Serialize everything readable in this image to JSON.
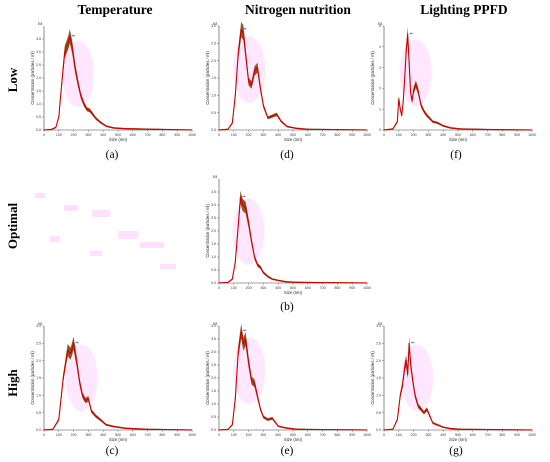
{
  "headers": {
    "columns": [
      "Temperature",
      "Nitrogen nutrition",
      "Lighting PPFD"
    ],
    "rows": [
      "Low",
      "Optimal",
      "High"
    ]
  },
  "axis_text": {
    "xlabel": "Size (nm)",
    "ylabel": "Concentration (particles / ml)",
    "exponent": "E8",
    "xticks": [
      "0",
      "100",
      "200",
      "300",
      "400",
      "500",
      "600",
      "700",
      "800",
      "900",
      "1000"
    ]
  },
  "colors": {
    "curve": "#cc0000",
    "band": "#7a3b00",
    "magenta": "#ff3cff",
    "marker": "#6d5bd0"
  },
  "chart_data": [
    {
      "id": "a",
      "caption": "(a)",
      "type": "area",
      "condition": "Temperature – Low",
      "xlabel": "Size (nm)",
      "ylabel": "Concentration (particles / ml)",
      "xlim": [
        0,
        1000
      ],
      "ylim": [
        0,
        4.0
      ],
      "yticks": [
        "0.0",
        "0.5",
        "1.0",
        "1.5",
        "2.0",
        "2.5",
        "3.0",
        "3.5"
      ],
      "x": [
        0,
        50,
        80,
        100,
        120,
        140,
        160,
        175,
        190,
        210,
        230,
        250,
        270,
        290,
        310,
        330,
        350,
        380,
        420,
        470,
        550,
        700,
        1000
      ],
      "y": [
        0,
        0.02,
        0.1,
        0.5,
        1.8,
        3.0,
        3.3,
        3.6,
        3.2,
        2.4,
        1.8,
        1.3,
        1.0,
        0.8,
        0.75,
        0.6,
        0.45,
        0.3,
        0.15,
        0.08,
        0.05,
        0.03,
        0
      ]
    },
    {
      "id": "b",
      "caption": "(b)",
      "type": "area",
      "condition": "Nitrogen nutrition – Optimal",
      "xlabel": "Size (nm)",
      "ylabel": "Concentration (particles / ml)",
      "xlim": [
        0,
        1000
      ],
      "ylim": [
        0,
        4.0
      ],
      "yticks": [
        "0.0",
        "0.5",
        "1.0",
        "1.5",
        "2.0",
        "2.5",
        "3.0",
        "3.5"
      ],
      "x": [
        0,
        60,
        90,
        110,
        130,
        145,
        160,
        180,
        200,
        220,
        240,
        260,
        280,
        300,
        330,
        360,
        400,
        450,
        500,
        600,
        1000
      ],
      "y": [
        0,
        0.02,
        0.15,
        0.8,
        2.2,
        3.3,
        3.0,
        2.9,
        2.3,
        1.6,
        1.0,
        0.7,
        0.6,
        0.4,
        0.25,
        0.15,
        0.1,
        0.05,
        0.03,
        0.02,
        0
      ]
    },
    {
      "id": "c",
      "caption": "(c)",
      "type": "area",
      "condition": "Temperature – High",
      "xlabel": "Size (nm)",
      "ylabel": "Concentration (particles / ml)",
      "xlim": [
        0,
        1000
      ],
      "ylim": [
        0,
        3.0
      ],
      "yticks": [
        "0.0",
        "0.5",
        "1.0",
        "1.5",
        "2.0",
        "2.5",
        "3.0"
      ],
      "x": [
        0,
        60,
        100,
        130,
        160,
        180,
        200,
        220,
        240,
        260,
        280,
        300,
        320,
        350,
        380,
        420,
        470,
        550,
        700,
        1000
      ],
      "y": [
        0,
        0.02,
        0.3,
        1.5,
        2.3,
        2.2,
        2.5,
        2.0,
        1.4,
        1.0,
        0.85,
        0.9,
        0.55,
        0.4,
        0.3,
        0.15,
        0.1,
        0.05,
        0.02,
        0
      ]
    },
    {
      "id": "d",
      "caption": "(d)",
      "type": "area",
      "condition": "Nitrogen nutrition – Low",
      "xlabel": "Size (nm)",
      "ylabel": "Concentration (particles / ml)",
      "xlim": [
        0,
        1000
      ],
      "ylim": [
        0,
        3.0
      ],
      "yticks": [
        "0.0",
        "0.5",
        "1.0",
        "1.5",
        "2.0",
        "2.5",
        "3.0"
      ],
      "x": [
        0,
        60,
        90,
        110,
        130,
        150,
        165,
        180,
        200,
        220,
        240,
        260,
        280,
        300,
        330,
        360,
        390,
        420,
        460,
        520,
        600,
        1000
      ],
      "y": [
        0,
        0.02,
        0.2,
        1.0,
        2.2,
        2.9,
        2.8,
        2.2,
        1.4,
        1.3,
        1.7,
        1.8,
        1.2,
        0.7,
        0.35,
        0.4,
        0.45,
        0.25,
        0.1,
        0.05,
        0.02,
        0
      ]
    },
    {
      "id": "e",
      "caption": "(e)",
      "type": "area",
      "condition": "Nitrogen nutrition – High",
      "xlabel": "Size (nm)",
      "ylabel": "Concentration (particles / ml)",
      "xlim": [
        0,
        1000
      ],
      "ylim": [
        0,
        4.0
      ],
      "yticks": [
        "0.0",
        "0.5",
        "1.0",
        "1.5",
        "2.0",
        "2.5",
        "3.0",
        "3.5",
        "4.0"
      ],
      "x": [
        0,
        60,
        90,
        110,
        130,
        150,
        165,
        180,
        200,
        220,
        240,
        260,
        280,
        300,
        330,
        360,
        400,
        450,
        520,
        600,
        1000
      ],
      "y": [
        0,
        0.02,
        0.2,
        1.2,
        3.0,
        3.8,
        3.3,
        3.5,
        2.6,
        1.9,
        1.8,
        1.3,
        0.8,
        0.5,
        0.4,
        0.45,
        0.15,
        0.08,
        0.03,
        0.02,
        0
      ]
    },
    {
      "id": "f",
      "caption": "(f)",
      "type": "area",
      "condition": "Lighting PPFD – Low",
      "xlabel": "Size (nm)",
      "ylabel": "Concentration (particles / ml)",
      "xlim": [
        0,
        1000
      ],
      "ylim": [
        0,
        5.0
      ],
      "yticks": [
        "0",
        "1",
        "2",
        "3",
        "4",
        "5"
      ],
      "x": [
        0,
        60,
        90,
        100,
        110,
        120,
        130,
        140,
        150,
        160,
        170,
        180,
        190,
        200,
        215,
        230,
        250,
        270,
        290,
        310,
        330,
        360,
        400,
        450,
        520,
        700,
        1000
      ],
      "y": [
        0,
        0.05,
        0.4,
        1.5,
        1.0,
        0.7,
        1.4,
        2.5,
        3.8,
        4.6,
        3.2,
        1.8,
        1.4,
        1.9,
        2.2,
        1.9,
        1.2,
        0.9,
        0.7,
        0.55,
        0.4,
        0.35,
        0.2,
        0.1,
        0.05,
        0.02,
        0
      ]
    },
    {
      "id": "g",
      "caption": "(g)",
      "type": "area",
      "condition": "Lighting PPFD – High",
      "xlabel": "Size (nm)",
      "ylabel": "Concentration (particles / ml)",
      "xlim": [
        0,
        1000
      ],
      "ylim": [
        0,
        3.0
      ],
      "yticks": [
        "0.0",
        "0.5",
        "1.0",
        "1.5",
        "2.0",
        "2.5",
        "3.0"
      ],
      "x": [
        0,
        60,
        90,
        110,
        125,
        140,
        150,
        160,
        170,
        180,
        195,
        210,
        230,
        250,
        270,
        290,
        310,
        330,
        360,
        400,
        450,
        520,
        1000
      ],
      "y": [
        0,
        0.02,
        0.3,
        1.0,
        1.3,
        1.8,
        2.0,
        1.6,
        2.5,
        1.9,
        1.4,
        1.0,
        0.7,
        0.6,
        0.5,
        0.6,
        0.4,
        0.2,
        0.15,
        0.08,
        0.04,
        0.02,
        0
      ]
    }
  ]
}
